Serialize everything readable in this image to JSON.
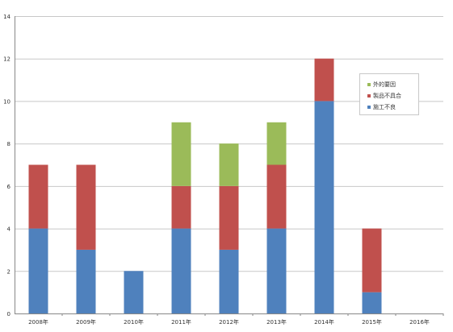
{
  "chart_data": {
    "type": "bar",
    "stacked": true,
    "categories": [
      "2008年",
      "2009年",
      "2010年",
      "2011年",
      "2012年",
      "2013年",
      "2014年",
      "2015年",
      "2016年"
    ],
    "series": [
      {
        "name": "施工不良",
        "color": "#4f81bd",
        "values": [
          4,
          3,
          2,
          4,
          3,
          4,
          10,
          1,
          0
        ]
      },
      {
        "name": "製品不具合",
        "color": "#c0504d",
        "values": [
          3,
          4,
          0,
          2,
          3,
          3,
          2,
          3,
          0
        ]
      },
      {
        "name": "外的要因",
        "color": "#9bbb59",
        "values": [
          0,
          0,
          0,
          3,
          2,
          2,
          0,
          0,
          0
        ]
      }
    ],
    "legend_order": [
      "外的要因",
      "製品不具合",
      "施工不良"
    ],
    "ylim": [
      0,
      14
    ],
    "yticks": [
      "0",
      "2",
      "4",
      "6",
      "8",
      "10",
      "12",
      "14"
    ],
    "grid": true,
    "legend_position": "right"
  }
}
